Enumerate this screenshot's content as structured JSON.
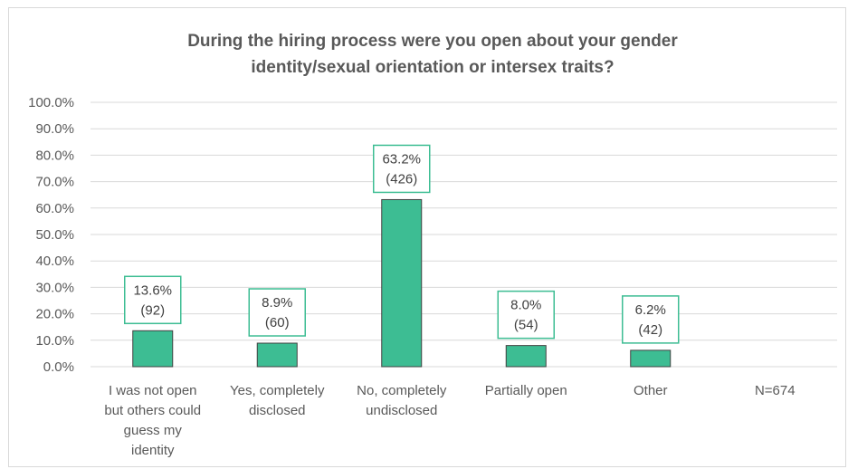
{
  "chart_data": {
    "type": "bar",
    "title_lines": [
      "During the hiring process were you open about your gender",
      "identity/sexual orientation or intersex traits?"
    ],
    "categories": [
      [
        "I was not open",
        "but others could",
        "guess my",
        "identity"
      ],
      [
        "Yes, completely",
        "disclosed"
      ],
      [
        "No, completely",
        "undisclosed"
      ],
      [
        "Partially open"
      ],
      [
        "Other"
      ],
      [
        "N=674"
      ]
    ],
    "values": [
      13.6,
      8.9,
      63.2,
      8.0,
      6.2,
      null
    ],
    "data_labels": [
      [
        "13.6%",
        "(92)"
      ],
      [
        "8.9%",
        "(60)"
      ],
      [
        "63.2%",
        "(426)"
      ],
      [
        "8.0%",
        "(54)"
      ],
      [
        "6.2%",
        "(42)"
      ],
      null
    ],
    "y_ticks": [
      "0.0%",
      "10.0%",
      "20.0%",
      "30.0%",
      "40.0%",
      "50.0%",
      "60.0%",
      "70.0%",
      "80.0%",
      "90.0%",
      "100.0%"
    ],
    "ylim": [
      0,
      100
    ],
    "grid": true,
    "legend": "none",
    "colors": {
      "bar_fill": "#3dbd93",
      "bar_stroke": "#404040",
      "label_border": "#3dbd93",
      "gridline": "#d9d9d9",
      "text": "#595959"
    }
  }
}
